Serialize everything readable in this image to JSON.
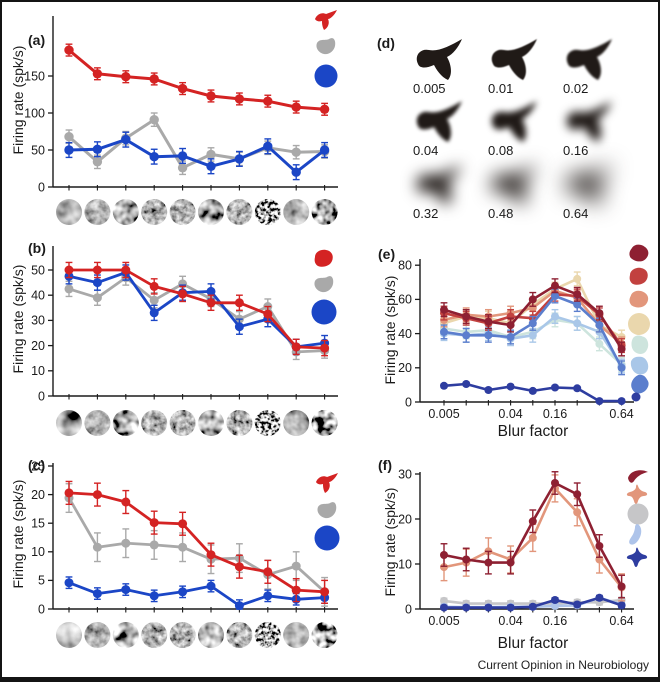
{
  "figure": {
    "footer": "Current Opinion in Neurobiology"
  },
  "panels": {
    "a": {
      "label": "(a)",
      "ylabel": "Firing rate (spk/s)"
    },
    "b": {
      "label": "(b)",
      "ylabel": "Firing rate (spk/s)"
    },
    "c": {
      "label": "(c)",
      "ylabel": "Firing rate (spk/s)"
    },
    "d": {
      "label": "(d)",
      "blur_factors": [
        "0.005",
        "0.01",
        "0.02",
        "0.04",
        "0.08",
        "0.16",
        "0.32",
        "0.48",
        "0.64"
      ]
    },
    "e": {
      "label": "(e)",
      "ylabel": "Firing rate (spk/s)",
      "xlabel": "Blur factor"
    },
    "f": {
      "label": "(f)",
      "ylabel": "Firing rate (spk/s)",
      "xlabel": "Blur factor"
    }
  },
  "chart_data": [
    {
      "id": "a",
      "type": "line",
      "title": "",
      "ylabel": "Firing rate (spk/s)",
      "xlabel": "",
      "x_axis_note": "10 texture stimuli shown as circular grayscale thumbnails",
      "x_count": 10,
      "yticks": [
        0,
        50,
        100,
        150
      ],
      "ylim": [
        0,
        195
      ],
      "legend_position": "right-outside",
      "series": [
        {
          "name": "pointed-shape",
          "shape": "pointy",
          "color": "#d42323",
          "err": 8,
          "values": [
            185,
            153,
            149,
            146,
            133,
            123,
            119,
            116,
            108,
            105
          ]
        },
        {
          "name": "gray-blob",
          "shape": "blob2",
          "color": "#a9a9a9",
          "err": 9,
          "values": [
            68,
            34,
            66,
            91,
            26,
            44,
            38,
            53,
            47,
            48
          ]
        },
        {
          "name": "blue-circle",
          "shape": "circle",
          "color": "#1b46c6",
          "err": 10,
          "values": [
            50,
            51,
            64,
            41,
            42,
            28,
            38,
            55,
            20,
            50
          ]
        }
      ]
    },
    {
      "id": "b",
      "type": "line",
      "title": "",
      "ylabel": "Firing rate (spk/s)",
      "xlabel": "",
      "x_axis_note": "10 texture stimuli shown as circular grayscale thumbnails",
      "x_count": 10,
      "yticks": [
        0,
        10,
        20,
        30,
        40,
        50
      ],
      "ylim": [
        0,
        56
      ],
      "legend_position": "right-outside",
      "series": [
        {
          "name": "red-blob",
          "shape": "blob",
          "color": "#d42323",
          "err": 3,
          "values": [
            50,
            50,
            50,
            43.5,
            40.5,
            37,
            37,
            32.5,
            19.5,
            19
          ]
        },
        {
          "name": "gray-blob",
          "shape": "blob2",
          "color": "#a9a9a9",
          "err": 3,
          "values": [
            42.5,
            39,
            47,
            38,
            44.5,
            38.5,
            30.5,
            35.5,
            17.5,
            18
          ]
        },
        {
          "name": "blue-circle",
          "shape": "circle",
          "color": "#1b46c6",
          "err": 3,
          "values": [
            47.5,
            45,
            49,
            33,
            41,
            41.5,
            27.5,
            30.5,
            19.5,
            21
          ]
        }
      ]
    },
    {
      "id": "c",
      "type": "line",
      "title": "",
      "ylabel": "Firing rate (spk/s)",
      "xlabel": "",
      "x_axis_note": "10 texture stimuli shown as circular grayscale thumbnails",
      "x_count": 10,
      "yticks": [
        0,
        5,
        10,
        15,
        20,
        25
      ],
      "ylim": [
        0,
        25.5
      ],
      "legend_position": "right-outside",
      "series": [
        {
          "name": "pointed-shape",
          "shape": "pointy",
          "color": "#d42323",
          "err": 2,
          "values": [
            20.3,
            20,
            18.7,
            15.1,
            14.9,
            9.5,
            7.4,
            6.5,
            3.3,
            3
          ]
        },
        {
          "name": "gray-blob",
          "shape": "blob2",
          "color": "#a9a9a9",
          "err": 2.5,
          "values": [
            19.4,
            10.8,
            11.5,
            11.2,
            10.8,
            8.7,
            8.9,
            6,
            7.5,
            3
          ]
        },
        {
          "name": "blue-circle",
          "shape": "circle",
          "color": "#1b46c6",
          "err": 1,
          "values": [
            4.6,
            2.7,
            3.4,
            2.3,
            3,
            4,
            0.6,
            2.3,
            1.7,
            2
          ]
        }
      ]
    },
    {
      "id": "e",
      "type": "line",
      "title": "",
      "ylabel": "Firing rate (spk/s)",
      "xlabel": "Blur factor",
      "x": [
        "0.005",
        "0.01",
        "0.02",
        "0.04",
        "0.08",
        "0.16",
        "0.32",
        "0.48",
        "0.64"
      ],
      "x_label_indices": [
        0,
        3,
        5,
        8
      ],
      "yticks": [
        0,
        20,
        40,
        60,
        80
      ],
      "ylim": [
        0,
        82
      ],
      "legend_position": "right-outside",
      "series": [
        {
          "name": "dark-red-blob",
          "shape": "blob",
          "color": "#8e2032",
          "err": 4,
          "values": [
            54,
            50,
            47,
            45,
            60,
            68,
            63,
            52,
            31
          ]
        },
        {
          "name": "red-blob",
          "shape": "blob",
          "color": "#c2413f",
          "err": 4,
          "values": [
            52,
            49,
            46,
            50,
            49,
            63,
            62,
            51,
            33
          ]
        },
        {
          "name": "salmon-blob",
          "shape": "blob",
          "color": "#e2967b",
          "err": 4,
          "values": [
            48,
            51,
            50,
            52,
            55,
            65,
            61,
            45,
            34
          ]
        },
        {
          "name": "tan-blob",
          "shape": "circle",
          "color": "#ead7ad",
          "err": 4,
          "values": [
            46,
            50,
            49,
            46,
            57,
            66,
            72,
            45,
            38
          ]
        },
        {
          "name": "light-teal-blob",
          "shape": "blob",
          "color": "#cde4dd",
          "err": 4,
          "values": [
            43,
            41,
            42,
            38,
            41,
            48,
            46,
            34,
            22
          ]
        },
        {
          "name": "light-blue-blob",
          "shape": "blob",
          "color": "#a9c7e8",
          "err": 4,
          "values": [
            40,
            39,
            40,
            37,
            39,
            50,
            46,
            41,
            21
          ]
        },
        {
          "name": "medium-blue-blob",
          "shape": "blob",
          "color": "#5b7ecd",
          "err": 4,
          "values": [
            41,
            39,
            39,
            38,
            46,
            62,
            57,
            45,
            20
          ]
        },
        {
          "name": "dark-blue-dot",
          "shape": "dot",
          "color": "#2e3da0",
          "err": 1,
          "values": [
            9.5,
            10.5,
            7,
            9,
            6.5,
            8.5,
            8,
            0.5,
            0.5
          ]
        }
      ]
    },
    {
      "id": "f",
      "type": "line",
      "title": "",
      "ylabel": "Firing rate (spk/s)",
      "xlabel": "Blur factor",
      "x": [
        "0.005",
        "0.01",
        "0.02",
        "0.04",
        "0.08",
        "0.16",
        "0.32",
        "0.48",
        "0.64"
      ],
      "x_label_indices": [
        0,
        3,
        5,
        8
      ],
      "yticks": [
        0,
        10,
        20,
        30
      ],
      "ylim": [
        0,
        31
      ],
      "legend_position": "right-outside",
      "series": [
        {
          "name": "dark-red-crescent",
          "shape": "crescent",
          "color": "#8e2032",
          "err": 2.5,
          "values": [
            12,
            11,
            10.3,
            10.3,
            19.5,
            28,
            25.5,
            14,
            5
          ]
        },
        {
          "name": "salmon-tripod",
          "shape": "tripod",
          "color": "#e2967b",
          "err": 3,
          "values": [
            9.3,
            10.3,
            12.8,
            11,
            15.8,
            26.8,
            21.5,
            11,
            4.8
          ]
        },
        {
          "name": "gray-circle",
          "shape": "circle",
          "color": "#c6c6c8",
          "err": 0.6,
          "values": [
            1.8,
            1.2,
            1.2,
            1.2,
            1.2,
            1.2,
            1.5,
            1.5,
            2
          ]
        },
        {
          "name": "light-blue-curve",
          "shape": "comma",
          "color": "#aec4ea",
          "err": 0.5,
          "values": [
            0.5,
            0.4,
            0.4,
            0.5,
            0.5,
            0.7,
            0.8,
            2.5,
            1
          ]
        },
        {
          "name": "dark-blue-tripod",
          "shape": "tripod",
          "color": "#2e3da0",
          "err": 0.5,
          "values": [
            0.3,
            0.3,
            0.3,
            0.3,
            0.5,
            2,
            1,
            2.5,
            0.8
          ]
        }
      ]
    }
  ]
}
